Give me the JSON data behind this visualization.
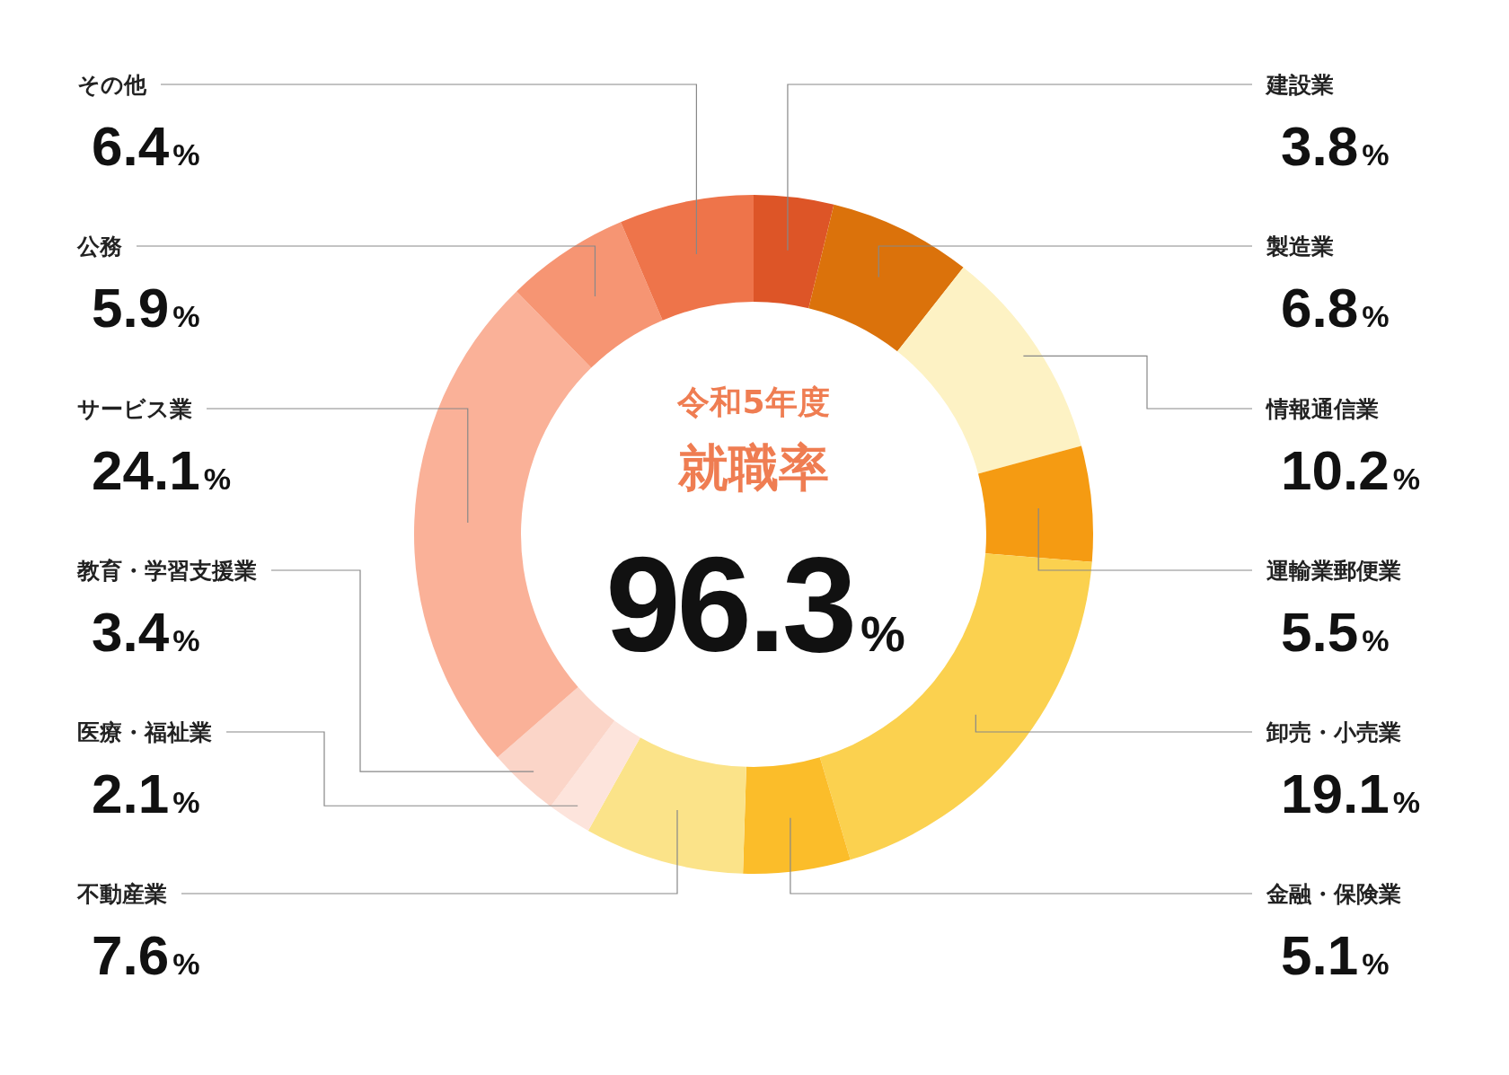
{
  "chart_data": {
    "type": "donut",
    "title": "就職率",
    "subtitle": "令和5年度",
    "categories": [
      "建設業",
      "製造業",
      "情報通信業",
      "運輸業郵便業",
      "卸売・小売業",
      "金融・保険業",
      "不動産業",
      "医療・福祉業",
      "教育・学習支援業",
      "サービス業",
      "公務",
      "その他"
    ],
    "values": [
      3.8,
      6.8,
      10.2,
      5.5,
      19.1,
      5.1,
      7.6,
      2.1,
      3.4,
      24.1,
      5.9,
      6.4
    ],
    "value_labels": [
      "3.8%",
      "6.8%",
      "10.2%",
      "5.5%",
      "19.1%",
      "5.1%",
      "7.6%",
      "2.1%",
      "3.4%",
      "24.1%",
      "5.9%",
      "6.4%"
    ],
    "colors": [
      "#dd5527",
      "#db720b",
      "#fdf2c4",
      "#f59b12",
      "#fbd14f",
      "#fbbd2a",
      "#fbe389",
      "#fde4dc",
      "#fbd5c8",
      "#fab198",
      "#f69573",
      "#ee744a"
    ],
    "annotations": [
      "96.3%"
    ]
  }
}
